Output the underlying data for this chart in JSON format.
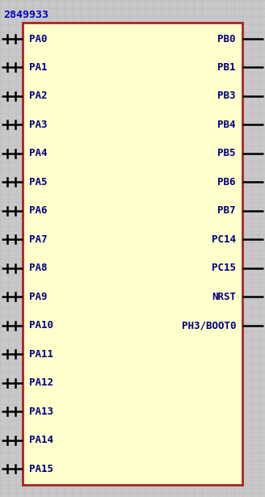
{
  "title": "2849933",
  "title_color": "#0000CC",
  "title_fontsize": 9.5,
  "bg_color": "#c8c8c8",
  "grid_color": "#b8b8c8",
  "box_color": "#aa2222",
  "box_fill": "#ffffcc",
  "pin_text_color": "#000080",
  "pin_fontsize": 9.0,
  "left_pins": [
    "PA0",
    "PA1",
    "PA2",
    "PA3",
    "PA4",
    "PA5",
    "PA6",
    "PA7",
    "PA8",
    "PA9",
    "PA10",
    "PA11",
    "PA12",
    "PA13",
    "PA14",
    "PA15"
  ],
  "right_pins": [
    "PB0",
    "PB1",
    "PB3",
    "PB4",
    "PB5",
    "PB6",
    "PB7",
    "PC14",
    "PC15",
    "NRST",
    "PH3/BOOT0",
    "",
    "",
    "",
    "",
    ""
  ],
  "fig_width": 3.28,
  "fig_height": 6.15,
  "dpi": 100
}
